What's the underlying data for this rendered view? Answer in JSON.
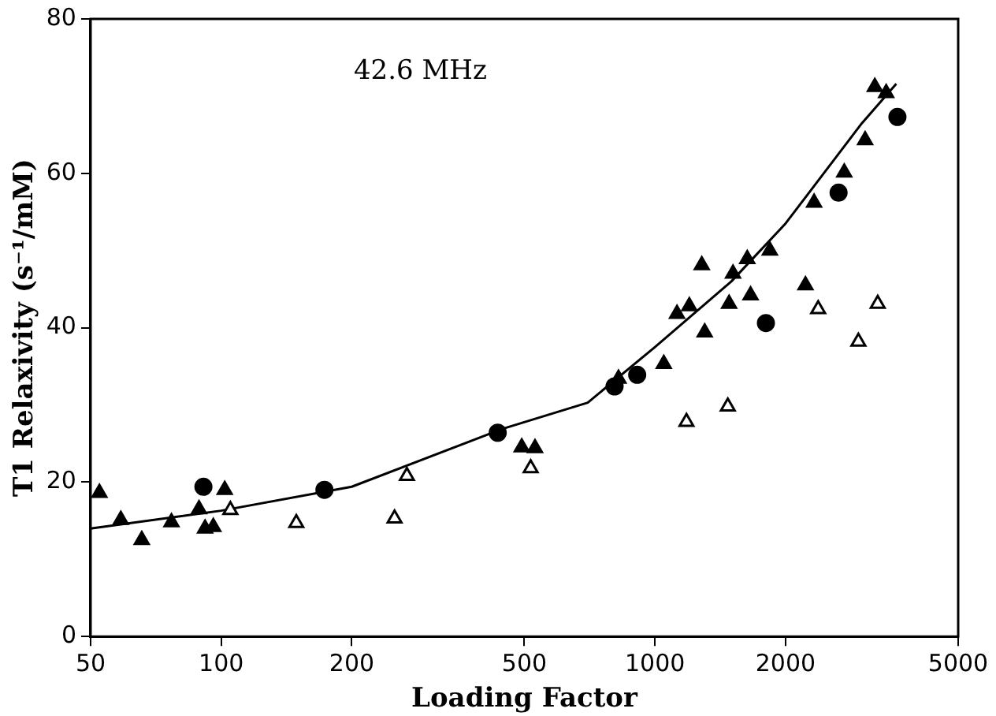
{
  "chart_data": {
    "type": "scatter",
    "xlabel": "Loading Factor",
    "ylabel": "T1 Relaxivity (s⁻¹/mM)",
    "annotations": [
      "42.6 MHz"
    ],
    "log": "x",
    "xlim": [
      50,
      5000
    ],
    "xticks": [
      50,
      100,
      200,
      500,
      1000,
      2000,
      5000
    ],
    "ylim": [
      0,
      80
    ],
    "yticks": [
      0,
      20,
      40,
      60,
      80
    ],
    "grid": false,
    "legend": false,
    "series": [
      {
        "color": "#000000",
        "marker": "triangle",
        "x": [
          52.4,
          58.7,
          65.6,
          76.8,
          88.9,
          91.8,
          95.9,
          101.9,
          493,
          529,
          824,
          1048,
          1124,
          1200,
          1282,
          1302,
          1482,
          1513,
          1632,
          1661,
          1840,
          2223,
          2327,
          2731,
          3051,
          3212,
          3412
        ],
        "values": [
          18.6,
          15.1,
          12.5,
          14.8,
          16.5,
          14.0,
          14.2,
          19.0,
          24.5,
          24.4,
          33.4,
          35.3,
          41.8,
          42.8,
          48.1,
          39.4,
          43.1,
          47.0,
          48.9,
          44.2,
          50.0,
          45.5,
          56.2,
          60.1,
          64.3,
          71.2,
          70.4
        ]
      },
      {
        "color": "#000000",
        "marker": "circle",
        "x": [
          91,
          173,
          434,
          807,
          910,
          1802,
          2650,
          3622
        ],
        "values": [
          19.4,
          19.0,
          26.4,
          32.4,
          33.9,
          40.6,
          57.5,
          67.3
        ]
      },
      {
        "color": "#ffffff",
        "marker": "triangle",
        "x": [
          105,
          149,
          251,
          268,
          517,
          1182,
          1472,
          2378,
          2944,
          3262
        ],
        "values": [
          16.4,
          14.7,
          15.3,
          20.8,
          21.8,
          27.8,
          29.8,
          42.4,
          38.2,
          43.1
        ]
      },
      {
        "type": "line",
        "color": "#000000",
        "marker": "none",
        "x": [
          50,
          100,
          200,
          445,
          700,
          1000,
          1500,
          2000,
          3000,
          3600
        ],
        "values": [
          14.0,
          16.3,
          19.4,
          26.9,
          30.3,
          37.5,
          46.0,
          53.5,
          66.5,
          71.6
        ]
      }
    ]
  }
}
